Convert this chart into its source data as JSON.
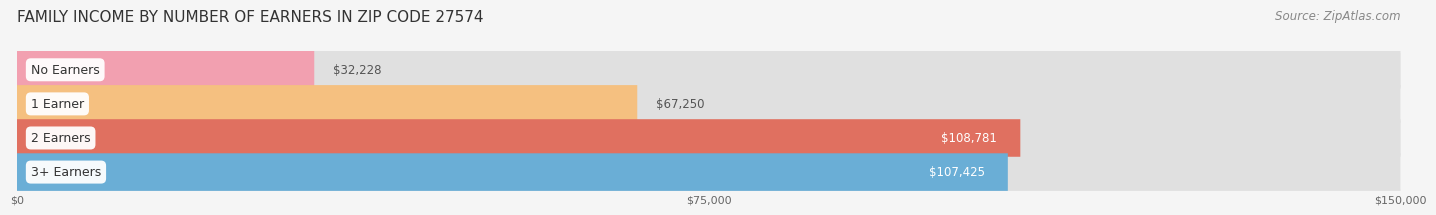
{
  "title": "FAMILY INCOME BY NUMBER OF EARNERS IN ZIP CODE 27574",
  "source": "Source: ZipAtlas.com",
  "categories": [
    "No Earners",
    "1 Earner",
    "2 Earners",
    "3+ Earners"
  ],
  "values": [
    32228,
    67250,
    108781,
    107425
  ],
  "bar_colors": [
    "#f2a0b0",
    "#f5c080",
    "#e07060",
    "#6aaed6"
  ],
  "label_colors": [
    "#555555",
    "#555555",
    "#ffffff",
    "#ffffff"
  ],
  "track_color": "#e0e0e0",
  "row_bg_even": "#f0f0f0",
  "row_bg_odd": "#fafafa",
  "bg_color": "#f5f5f5",
  "xmax": 150000,
  "xtick_labels": [
    "$0",
    "$75,000",
    "$150,000"
  ],
  "title_fontsize": 11,
  "source_fontsize": 8.5,
  "value_fontsize": 8.5,
  "category_fontsize": 9
}
